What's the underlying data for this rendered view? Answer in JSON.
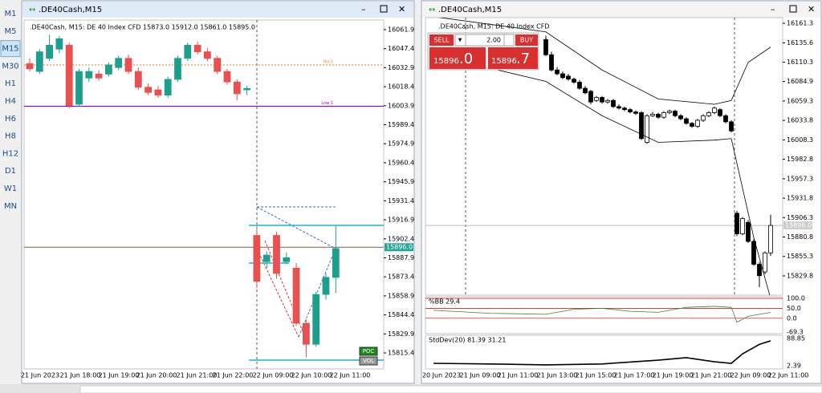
{
  "toolbar": {
    "timeframes": [
      "M1",
      "M5",
      "M15",
      "M30",
      "H1",
      "H4",
      "H6",
      "H8",
      "H12",
      "D1",
      "W1",
      "MN"
    ],
    "active_index": 2
  },
  "left_window": {
    "title": ".DE40Cash,M15",
    "info": ".DE40Cash, M15:  DE 40 Index CFD   15873.0 15912.0 15861.0 15895.0",
    "ylim": [
      15803.2,
      16069.2
    ],
    "yticks": [
      16061.9,
      16047.4,
      16032.9,
      16018.4,
      16003.9,
      15989.4,
      15974.9,
      15960.4,
      15945.9,
      15931.4,
      15916.9,
      15902.4,
      15887.9,
      15873.4,
      15858.9,
      15844.4,
      15829.9,
      15815.4
    ],
    "current_price": {
      "value": 15896.0,
      "label": "15896.0"
    },
    "levels": [
      {
        "label": "Roc1",
        "value": 16035,
        "color": "#e69138"
      },
      {
        "label": "Low 1",
        "value": 16003.5,
        "color": "#9900cc"
      }
    ],
    "candles": [
      [
        16036,
        16040,
        16030,
        16032
      ],
      [
        16030,
        16047,
        16028,
        16045
      ],
      [
        16040,
        16058,
        16038,
        16050
      ],
      [
        16047,
        16057,
        16044,
        16055
      ],
      [
        16050,
        16052,
        16002,
        16004
      ],
      [
        16005,
        16032,
        16003,
        16030
      ],
      [
        16025,
        16033,
        16022,
        16030
      ],
      [
        16028,
        16031,
        16023,
        16025
      ],
      [
        16028,
        16037,
        16026,
        16035
      ],
      [
        16033,
        16042,
        16031,
        16040
      ],
      [
        16040,
        16043,
        16028,
        16030
      ],
      [
        16030,
        16033,
        16016,
        16018
      ],
      [
        16018,
        16021,
        16012,
        16014
      ],
      [
        16016,
        16019,
        16010,
        16012
      ],
      [
        16012,
        16026,
        16010,
        16024
      ],
      [
        16024,
        16042,
        16022,
        16040
      ],
      [
        16040,
        16052,
        16038,
        16050
      ],
      [
        16050,
        16053,
        16043,
        16045
      ],
      [
        16045,
        16048,
        16038,
        16040
      ],
      [
        16040,
        16042,
        16028,
        16030
      ],
      [
        16030,
        16032,
        16020,
        16022
      ],
      [
        16022,
        16024,
        16008,
        16013
      ],
      [
        16016,
        16019,
        16012,
        16017
      ],
      [
        15905,
        15912,
        15865,
        15870
      ],
      [
        15885,
        15893,
        15880,
        15890
      ],
      [
        15905,
        15908,
        15872,
        15876
      ],
      [
        15885,
        15892,
        15883,
        15888
      ],
      [
        15880,
        15884,
        15836,
        15838
      ],
      [
        15838,
        15841,
        15812,
        15822
      ],
      [
        15822,
        15862,
        15820,
        15860
      ],
      [
        15860,
        15876,
        15856,
        15873
      ],
      [
        15873,
        15912,
        15861,
        15895
      ]
    ],
    "time_labels": [
      "21 Jun 2023",
      "21 Jun 18:00",
      "21 Jun 19:00",
      "21 Jun 20:00",
      "21 Jun 21:00",
      "21 Jun 22:00",
      "22 Jun 09:00",
      "22 Jun 10:00",
      "22 Jun 11:00"
    ],
    "markers": [
      "POC",
      "VOL"
    ]
  },
  "right_window": {
    "title": ".DE40Cash,M15",
    "info": ".DE40Cash, M15:  DE 40 Index CFD",
    "trade_panel": {
      "sell": "SELL",
      "buy": "BUY",
      "volume": "2.00",
      "bid_big": "15896",
      "bid_small": ".0",
      "ask_big": "15896",
      "ask_small": ".7"
    },
    "ylim": [
      15804.5,
      16168.7
    ],
    "yticks": [
      16161.3,
      16135.6,
      16110.3,
      16084.9,
      16059.3,
      16033.8,
      16008.3,
      15982.8,
      15957.3,
      15931.8,
      15906.3,
      15880.8,
      15855.3,
      15829.8
    ],
    "current_price": {
      "value": 15896.0,
      "label": "15896.0"
    },
    "candles": [
      [
        16140,
        16145,
        16118,
        16120
      ],
      [
        16120,
        16124,
        16098,
        16100
      ],
      [
        16100,
        16104,
        16093,
        16095
      ],
      [
        16095,
        16098,
        16088,
        16090
      ],
      [
        16092,
        16095,
        16086,
        16088
      ],
      [
        16088,
        16090,
        16082,
        16084
      ],
      [
        16084,
        16087,
        16074,
        16076
      ],
      [
        16076,
        16079,
        16068,
        16070
      ],
      [
        16072,
        16074,
        16055,
        16058
      ],
      [
        16060,
        16066,
        16058,
        16064
      ],
      [
        16064,
        16066,
        16056,
        16058
      ],
      [
        16058,
        16062,
        16056,
        16060
      ],
      [
        16060,
        16062,
        16050,
        16052
      ],
      [
        16052,
        16055,
        16048,
        16050
      ],
      [
        16050,
        16052,
        16046,
        16048
      ],
      [
        16048,
        16050,
        16043,
        16045
      ],
      [
        16045,
        16047,
        16041,
        16043
      ],
      [
        16044,
        16046,
        16008,
        16010
      ],
      [
        16005,
        16042,
        16003,
        16040
      ],
      [
        16040,
        16045,
        16038,
        16042
      ],
      [
        16042,
        16044,
        16036,
        16038
      ],
      [
        16038,
        16046,
        16036,
        16044
      ],
      [
        16044,
        16048,
        16042,
        16046
      ],
      [
        16046,
        16048,
        16038,
        16040
      ],
      [
        16040,
        16042,
        16034,
        16036
      ],
      [
        16036,
        16038,
        16028,
        16030
      ],
      [
        16030,
        16032,
        16024,
        16026
      ],
      [
        16026,
        16036,
        16024,
        16034
      ],
      [
        16034,
        16042,
        16032,
        16040
      ],
      [
        16040,
        16046,
        16038,
        16044
      ],
      [
        16044,
        16052,
        16042,
        16050
      ],
      [
        16048,
        16050,
        16038,
        16040
      ],
      [
        16040,
        16042,
        16030,
        16032
      ],
      [
        16032,
        16034,
        16018,
        16020
      ],
      [
        15912,
        15915,
        15882,
        15885
      ],
      [
        15885,
        15907,
        15883,
        15905
      ],
      [
        15900,
        15903,
        15873,
        15875
      ],
      [
        15875,
        15878,
        15843,
        15845
      ],
      [
        15845,
        15848,
        15815,
        15830
      ],
      [
        15835,
        15862,
        15832,
        15860
      ],
      [
        15860,
        15910,
        15856,
        15896
      ]
    ],
    "bands": {
      "upper": [
        [
          -20,
          16170
        ],
        [
          0,
          16150
        ],
        [
          10,
          16100
        ],
        [
          20,
          16062
        ],
        [
          30,
          16055
        ],
        [
          33,
          16060
        ],
        [
          36,
          16110
        ],
        [
          40,
          16130
        ]
      ],
      "lower": [
        [
          -20,
          16120
        ],
        [
          0,
          16085
        ],
        [
          10,
          16040
        ],
        [
          20,
          16005
        ],
        [
          30,
          16008
        ],
        [
          33,
          16010
        ],
        [
          37,
          15880
        ],
        [
          40,
          15800
        ]
      ]
    },
    "bb_panel": {
      "title": "%BB 29.4",
      "ylim": [
        -69.3,
        100
      ],
      "yticks": [
        {
          "value": 100,
          "label": "100.0"
        },
        {
          "value": 50,
          "label": "50.0"
        },
        {
          "value": 0,
          "label": "0.0"
        },
        -69.3
      ],
      "level_color": "#cc0000",
      "line_color": "#2e8b2e",
      "line": [
        [
          -20,
          40
        ],
        [
          -10,
          25
        ],
        [
          0,
          20
        ],
        [
          5,
          45
        ],
        [
          10,
          50
        ],
        [
          15,
          35
        ],
        [
          20,
          30
        ],
        [
          25,
          55
        ],
        [
          30,
          60
        ],
        [
          33,
          55
        ],
        [
          34,
          -20
        ],
        [
          36,
          10
        ],
        [
          38,
          20
        ],
        [
          40,
          29.4
        ]
      ]
    },
    "std_panel": {
      "title": "StdDev(20) 81.39 31.21",
      "ylim": [
        2.39,
        88.85
      ],
      "yticks": [
        88.85,
        2.39
      ],
      "line": [
        [
          -20,
          10
        ],
        [
          -10,
          8
        ],
        [
          0,
          5
        ],
        [
          10,
          8
        ],
        [
          20,
          20
        ],
        [
          25,
          28
        ],
        [
          30,
          15
        ],
        [
          33,
          10
        ],
        [
          35,
          40
        ],
        [
          38,
          70
        ],
        [
          40,
          81.39
        ]
      ]
    },
    "time_labels": [
      "20 Jun 2023",
      "21 Jun 09:00",
      "21 Jun 11:00",
      "21 Jun 13:00",
      "21 Jun 15:00",
      "21 Jun 17:00",
      "21 Jun 19:00",
      "21 Jun 21:00",
      "22 Jun 09:00",
      "22 Jun 11:00"
    ]
  }
}
